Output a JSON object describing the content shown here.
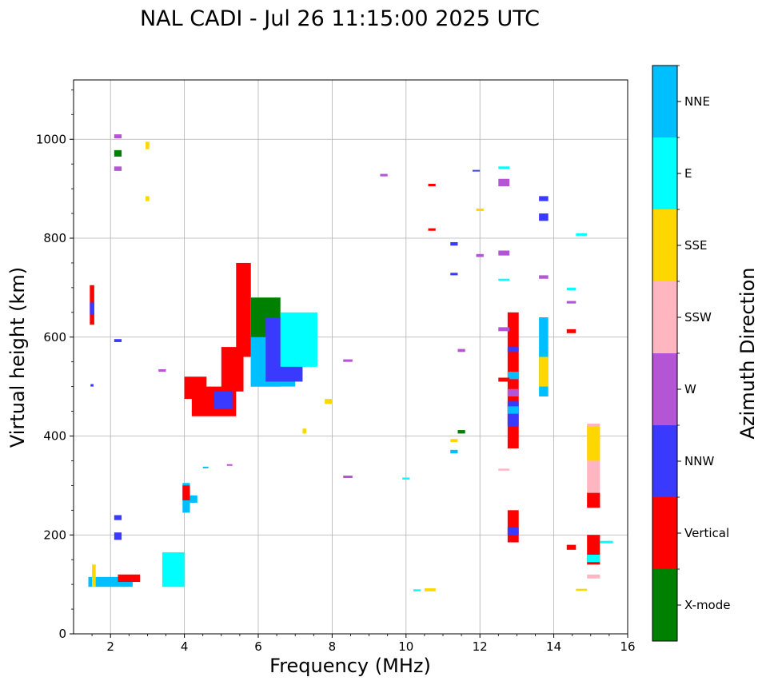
{
  "chart_data": {
    "type": "scatter",
    "title": "NAL CADI - Jul 26 11:15:00 2025 UTC",
    "xlabel": "Frequency (MHz)",
    "ylabel": "Virtual height (km)",
    "xlim": [
      1,
      16
    ],
    "ylim": [
      0,
      1120
    ],
    "xticks": [
      2,
      4,
      6,
      8,
      10,
      12,
      14,
      16
    ],
    "yticks": [
      0,
      200,
      400,
      600,
      800,
      1000
    ],
    "grid": true,
    "colorbar": {
      "label": "Azimuth Direction",
      "categories": [
        {
          "name": "X-mode",
          "color": "#008000"
        },
        {
          "name": "Vertical",
          "color": "#ff0000"
        },
        {
          "name": "NNW",
          "color": "#3a3aff"
        },
        {
          "name": "W",
          "color": "#b455d6"
        },
        {
          "name": "SSW",
          "color": "#ffb6c1"
        },
        {
          "name": "SSE",
          "color": "#ffd700"
        },
        {
          "name": "E",
          "color": "#00ffff"
        },
        {
          "name": "NNE",
          "color": "#00bfff"
        }
      ]
    },
    "segments": [
      {
        "x": [
          1.44,
          1.56
        ],
        "y": [
          625,
          705
        ],
        "dir": "Vertical"
      },
      {
        "x": [
          1.44,
          1.56
        ],
        "y": [
          645,
          670
        ],
        "dir": "NNW"
      },
      {
        "x": [
          1.46,
          1.54
        ],
        "y": [
          500,
          505
        ],
        "dir": "NNW"
      },
      {
        "x": [
          2.1,
          2.3
        ],
        "y": [
          1002,
          1010
        ],
        "dir": "W"
      },
      {
        "x": [
          2.1,
          2.3
        ],
        "y": [
          965,
          978
        ],
        "dir": "X-mode"
      },
      {
        "x": [
          2.1,
          2.3
        ],
        "y": [
          936,
          945
        ],
        "dir": "W"
      },
      {
        "x": [
          2.1,
          2.3
        ],
        "y": [
          590,
          596
        ],
        "dir": "NNW"
      },
      {
        "x": [
          2.1,
          2.3
        ],
        "y": [
          230,
          240
        ],
        "dir": "NNW"
      },
      {
        "x": [
          2.1,
          2.3
        ],
        "y": [
          190,
          205
        ],
        "dir": "NNW"
      },
      {
        "x": [
          2.95,
          3.05
        ],
        "y": [
          980,
          995
        ],
        "dir": "SSE"
      },
      {
        "x": [
          2.95,
          3.05
        ],
        "y": [
          875,
          885
        ],
        "dir": "SSE"
      },
      {
        "x": [
          3.95,
          4.15
        ],
        "y": [
          245,
          305
        ],
        "dir": "NNE"
      },
      {
        "x": [
          3.95,
          4.15
        ],
        "y": [
          270,
          300
        ],
        "dir": "Vertical"
      },
      {
        "x": [
          4.15,
          4.35
        ],
        "y": [
          265,
          280
        ],
        "dir": "NNE"
      },
      {
        "x": [
          1.4,
          2.6
        ],
        "y": [
          95,
          115
        ],
        "dir": "NNE"
      },
      {
        "x": [
          2.2,
          2.8
        ],
        "y": [
          105,
          120
        ],
        "dir": "Vertical"
      },
      {
        "x": [
          1.5,
          1.6
        ],
        "y": [
          95,
          140
        ],
        "dir": "SSE"
      },
      {
        "x": [
          3.4,
          4.0
        ],
        "y": [
          95,
          165
        ],
        "dir": "E"
      },
      {
        "x": [
          4.2,
          5.4
        ],
        "y": [
          440,
          500
        ],
        "dir": "Vertical"
      },
      {
        "x": [
          4.0,
          4.6
        ],
        "y": [
          475,
          520
        ],
        "dir": "Vertical"
      },
      {
        "x": [
          5.0,
          5.6
        ],
        "y": [
          490,
          580
        ],
        "dir": "Vertical"
      },
      {
        "x": [
          4.8,
          5.3
        ],
        "y": [
          455,
          490
        ],
        "dir": "NNW"
      },
      {
        "x": [
          5.4,
          5.8
        ],
        "y": [
          560,
          750
        ],
        "dir": "Vertical"
      },
      {
        "x": [
          5.8,
          6.6
        ],
        "y": [
          500,
          680
        ],
        "dir": "X-mode"
      },
      {
        "x": [
          5.8,
          7.0
        ],
        "y": [
          500,
          600
        ],
        "dir": "NNE"
      },
      {
        "x": [
          6.2,
          7.2
        ],
        "y": [
          510,
          640
        ],
        "dir": "NNW"
      },
      {
        "x": [
          6.6,
          7.6
        ],
        "y": [
          540,
          650
        ],
        "dir": "E"
      },
      {
        "x": [
          12.75,
          13.05
        ],
        "y": [
          375,
          650
        ],
        "dir": "Vertical"
      },
      {
        "x": [
          12.75,
          13.05
        ],
        "y": [
          420,
          470
        ],
        "dir": "NNW"
      },
      {
        "x": [
          12.75,
          13.05
        ],
        "y": [
          445,
          460
        ],
        "dir": "NNE"
      },
      {
        "x": [
          12.75,
          13.05
        ],
        "y": [
          480,
          495
        ],
        "dir": "W"
      },
      {
        "x": [
          12.75,
          13.05
        ],
        "y": [
          515,
          530
        ],
        "dir": "NNE"
      },
      {
        "x": [
          12.75,
          13.05
        ],
        "y": [
          570,
          580
        ],
        "dir": "NNW"
      },
      {
        "x": [
          12.75,
          13.05
        ],
        "y": [
          185,
          250
        ],
        "dir": "Vertical"
      },
      {
        "x": [
          12.75,
          13.05
        ],
        "y": [
          200,
          215
        ],
        "dir": "NNW"
      },
      {
        "x": [
          12.5,
          12.8
        ],
        "y": [
          612,
          620
        ],
        "dir": "W"
      },
      {
        "x": [
          12.5,
          12.8
        ],
        "y": [
          510,
          518
        ],
        "dir": "Vertical"
      },
      {
        "x": [
          12.5,
          12.8
        ],
        "y": [
          905,
          920
        ],
        "dir": "W"
      },
      {
        "x": [
          12.5,
          12.8
        ],
        "y": [
          940,
          945
        ],
        "dir": "E"
      },
      {
        "x": [
          12.5,
          12.8
        ],
        "y": [
          765,
          775
        ],
        "dir": "W"
      },
      {
        "x": [
          12.5,
          12.8
        ],
        "y": [
          714,
          718
        ],
        "dir": "E"
      },
      {
        "x": [
          12.5,
          12.8
        ],
        "y": [
          330,
          334
        ],
        "dir": "SSW"
      },
      {
        "x": [
          13.6,
          13.85
        ],
        "y": [
          480,
          640
        ],
        "dir": "NNE"
      },
      {
        "x": [
          13.6,
          13.85
        ],
        "y": [
          500,
          560
        ],
        "dir": "SSE"
      },
      {
        "x": [
          13.6,
          13.85
        ],
        "y": [
          835,
          850
        ],
        "dir": "NNW"
      },
      {
        "x": [
          13.6,
          13.85
        ],
        "y": [
          875,
          885
        ],
        "dir": "NNW"
      },
      {
        "x": [
          13.6,
          13.85
        ],
        "y": [
          718,
          725
        ],
        "dir": "W"
      },
      {
        "x": [
          14.9,
          15.25
        ],
        "y": [
          255,
          425
        ],
        "dir": "SSW"
      },
      {
        "x": [
          14.9,
          15.25
        ],
        "y": [
          350,
          420
        ],
        "dir": "SSE"
      },
      {
        "x": [
          14.9,
          15.25
        ],
        "y": [
          255,
          285
        ],
        "dir": "Vertical"
      },
      {
        "x": [
          14.9,
          15.25
        ],
        "y": [
          140,
          200
        ],
        "dir": "Vertical"
      },
      {
        "x": [
          14.9,
          15.25
        ],
        "y": [
          145,
          160
        ],
        "dir": "E"
      },
      {
        "x": [
          14.9,
          15.25
        ],
        "y": [
          112,
          120
        ],
        "dir": "SSW"
      },
      {
        "x": [
          15.25,
          15.6
        ],
        "y": [
          183,
          188
        ],
        "dir": "E"
      },
      {
        "x": [
          14.35,
          14.6
        ],
        "y": [
          170,
          180
        ],
        "dir": "Vertical"
      },
      {
        "x": [
          14.35,
          14.6
        ],
        "y": [
          608,
          616
        ],
        "dir": "Vertical"
      },
      {
        "x": [
          14.35,
          14.6
        ],
        "y": [
          695,
          700
        ],
        "dir": "E"
      },
      {
        "x": [
          14.35,
          14.6
        ],
        "y": [
          668,
          673
        ],
        "dir": "W"
      },
      {
        "x": [
          14.6,
          14.9
        ],
        "y": [
          805,
          810
        ],
        "dir": "E"
      },
      {
        "x": [
          14.6,
          14.9
        ],
        "y": [
          87,
          91
        ],
        "dir": "SSE"
      },
      {
        "x": [
          11.2,
          11.4
        ],
        "y": [
          365,
          372
        ],
        "dir": "NNE"
      },
      {
        "x": [
          11.2,
          11.4
        ],
        "y": [
          388,
          394
        ],
        "dir": "SSE"
      },
      {
        "x": [
          11.2,
          11.4
        ],
        "y": [
          785,
          792
        ],
        "dir": "NNW"
      },
      {
        "x": [
          11.2,
          11.4
        ],
        "y": [
          725,
          730
        ],
        "dir": "NNW"
      },
      {
        "x": [
          11.4,
          11.6
        ],
        "y": [
          405,
          412
        ],
        "dir": "X-mode"
      },
      {
        "x": [
          11.4,
          11.6
        ],
        "y": [
          570,
          576
        ],
        "dir": "W"
      },
      {
        "x": [
          10.6,
          10.8
        ],
        "y": [
          905,
          910
        ],
        "dir": "Vertical"
      },
      {
        "x": [
          10.6,
          10.8
        ],
        "y": [
          815,
          820
        ],
        "dir": "Vertical"
      },
      {
        "x": [
          10.5,
          10.8
        ],
        "y": [
          86,
          92
        ],
        "dir": "SSE"
      },
      {
        "x": [
          9.3,
          9.5
        ],
        "y": [
          925,
          930
        ],
        "dir": "W"
      },
      {
        "x": [
          8.3,
          8.55
        ],
        "y": [
          550,
          555
        ],
        "dir": "W"
      },
      {
        "x": [
          8.3,
          8.55
        ],
        "y": [
          315,
          320
        ],
        "dir": "W"
      },
      {
        "x": [
          9.9,
          10.1
        ],
        "y": [
          312,
          316
        ],
        "dir": "E"
      },
      {
        "x": [
          10.2,
          10.4
        ],
        "y": [
          86,
          90
        ],
        "dir": "E"
      },
      {
        "x": [
          11.8,
          12.0
        ],
        "y": [
          935,
          938
        ],
        "dir": "NNW"
      },
      {
        "x": [
          11.9,
          12.1
        ],
        "y": [
          855,
          860
        ],
        "dir": "SSE"
      },
      {
        "x": [
          11.9,
          12.1
        ],
        "y": [
          762,
          768
        ],
        "dir": "W"
      },
      {
        "x": [
          7.8,
          8.0
        ],
        "y": [
          465,
          475
        ],
        "dir": "SSE"
      },
      {
        "x": [
          7.2,
          7.3
        ],
        "y": [
          405,
          415
        ],
        "dir": "SSE"
      },
      {
        "x": [
          3.3,
          3.5
        ],
        "y": [
          530,
          535
        ],
        "dir": "W"
      },
      {
        "x": [
          4.5,
          4.65
        ],
        "y": [
          335,
          338
        ],
        "dir": "NNE"
      },
      {
        "x": [
          5.15,
          5.3
        ],
        "y": [
          340,
          343
        ],
        "dir": "W"
      }
    ]
  },
  "legend_placement": "right colorbar"
}
